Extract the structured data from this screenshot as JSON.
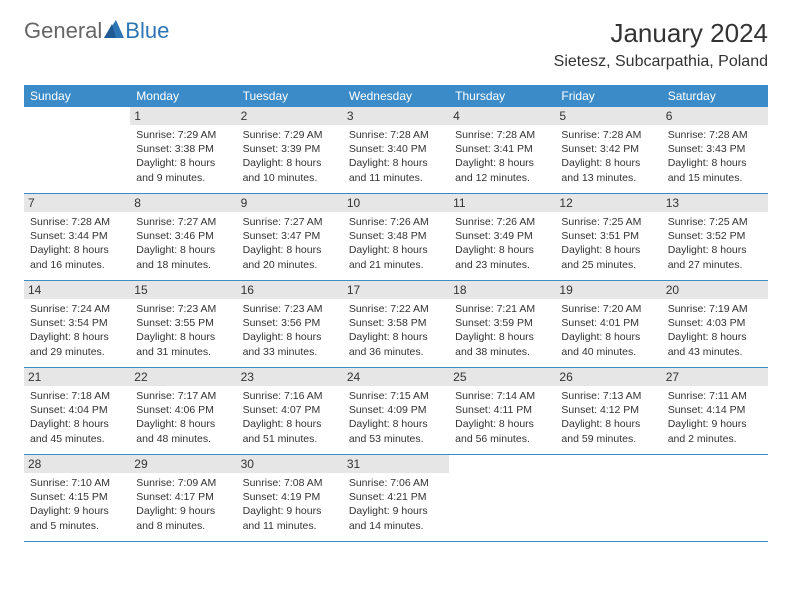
{
  "logo": {
    "text1": "General",
    "text2": "Blue"
  },
  "header": {
    "month_title": "January 2024",
    "location": "Sietesz, Subcarpathia, Poland"
  },
  "colors": {
    "header_bg": "#3b8bc9",
    "header_text": "#ffffff",
    "daynum_bg": "#e6e6e6",
    "border": "#3b8bc9",
    "logo_blue": "#2e75b6",
    "logo_gray": "#666666"
  },
  "day_names": [
    "Sunday",
    "Monday",
    "Tuesday",
    "Wednesday",
    "Thursday",
    "Friday",
    "Saturday"
  ],
  "weeks": [
    [
      {
        "day": "",
        "empty": true
      },
      {
        "day": "1",
        "sunrise": "Sunrise: 7:29 AM",
        "sunset": "Sunset: 3:38 PM",
        "daylight1": "Daylight: 8 hours",
        "daylight2": "and 9 minutes."
      },
      {
        "day": "2",
        "sunrise": "Sunrise: 7:29 AM",
        "sunset": "Sunset: 3:39 PM",
        "daylight1": "Daylight: 8 hours",
        "daylight2": "and 10 minutes."
      },
      {
        "day": "3",
        "sunrise": "Sunrise: 7:28 AM",
        "sunset": "Sunset: 3:40 PM",
        "daylight1": "Daylight: 8 hours",
        "daylight2": "and 11 minutes."
      },
      {
        "day": "4",
        "sunrise": "Sunrise: 7:28 AM",
        "sunset": "Sunset: 3:41 PM",
        "daylight1": "Daylight: 8 hours",
        "daylight2": "and 12 minutes."
      },
      {
        "day": "5",
        "sunrise": "Sunrise: 7:28 AM",
        "sunset": "Sunset: 3:42 PM",
        "daylight1": "Daylight: 8 hours",
        "daylight2": "and 13 minutes."
      },
      {
        "day": "6",
        "sunrise": "Sunrise: 7:28 AM",
        "sunset": "Sunset: 3:43 PM",
        "daylight1": "Daylight: 8 hours",
        "daylight2": "and 15 minutes."
      }
    ],
    [
      {
        "day": "7",
        "sunrise": "Sunrise: 7:28 AM",
        "sunset": "Sunset: 3:44 PM",
        "daylight1": "Daylight: 8 hours",
        "daylight2": "and 16 minutes."
      },
      {
        "day": "8",
        "sunrise": "Sunrise: 7:27 AM",
        "sunset": "Sunset: 3:46 PM",
        "daylight1": "Daylight: 8 hours",
        "daylight2": "and 18 minutes."
      },
      {
        "day": "9",
        "sunrise": "Sunrise: 7:27 AM",
        "sunset": "Sunset: 3:47 PM",
        "daylight1": "Daylight: 8 hours",
        "daylight2": "and 20 minutes."
      },
      {
        "day": "10",
        "sunrise": "Sunrise: 7:26 AM",
        "sunset": "Sunset: 3:48 PM",
        "daylight1": "Daylight: 8 hours",
        "daylight2": "and 21 minutes."
      },
      {
        "day": "11",
        "sunrise": "Sunrise: 7:26 AM",
        "sunset": "Sunset: 3:49 PM",
        "daylight1": "Daylight: 8 hours",
        "daylight2": "and 23 minutes."
      },
      {
        "day": "12",
        "sunrise": "Sunrise: 7:25 AM",
        "sunset": "Sunset: 3:51 PM",
        "daylight1": "Daylight: 8 hours",
        "daylight2": "and 25 minutes."
      },
      {
        "day": "13",
        "sunrise": "Sunrise: 7:25 AM",
        "sunset": "Sunset: 3:52 PM",
        "daylight1": "Daylight: 8 hours",
        "daylight2": "and 27 minutes."
      }
    ],
    [
      {
        "day": "14",
        "sunrise": "Sunrise: 7:24 AM",
        "sunset": "Sunset: 3:54 PM",
        "daylight1": "Daylight: 8 hours",
        "daylight2": "and 29 minutes."
      },
      {
        "day": "15",
        "sunrise": "Sunrise: 7:23 AM",
        "sunset": "Sunset: 3:55 PM",
        "daylight1": "Daylight: 8 hours",
        "daylight2": "and 31 minutes."
      },
      {
        "day": "16",
        "sunrise": "Sunrise: 7:23 AM",
        "sunset": "Sunset: 3:56 PM",
        "daylight1": "Daylight: 8 hours",
        "daylight2": "and 33 minutes."
      },
      {
        "day": "17",
        "sunrise": "Sunrise: 7:22 AM",
        "sunset": "Sunset: 3:58 PM",
        "daylight1": "Daylight: 8 hours",
        "daylight2": "and 36 minutes."
      },
      {
        "day": "18",
        "sunrise": "Sunrise: 7:21 AM",
        "sunset": "Sunset: 3:59 PM",
        "daylight1": "Daylight: 8 hours",
        "daylight2": "and 38 minutes."
      },
      {
        "day": "19",
        "sunrise": "Sunrise: 7:20 AM",
        "sunset": "Sunset: 4:01 PM",
        "daylight1": "Daylight: 8 hours",
        "daylight2": "and 40 minutes."
      },
      {
        "day": "20",
        "sunrise": "Sunrise: 7:19 AM",
        "sunset": "Sunset: 4:03 PM",
        "daylight1": "Daylight: 8 hours",
        "daylight2": "and 43 minutes."
      }
    ],
    [
      {
        "day": "21",
        "sunrise": "Sunrise: 7:18 AM",
        "sunset": "Sunset: 4:04 PM",
        "daylight1": "Daylight: 8 hours",
        "daylight2": "and 45 minutes."
      },
      {
        "day": "22",
        "sunrise": "Sunrise: 7:17 AM",
        "sunset": "Sunset: 4:06 PM",
        "daylight1": "Daylight: 8 hours",
        "daylight2": "and 48 minutes."
      },
      {
        "day": "23",
        "sunrise": "Sunrise: 7:16 AM",
        "sunset": "Sunset: 4:07 PM",
        "daylight1": "Daylight: 8 hours",
        "daylight2": "and 51 minutes."
      },
      {
        "day": "24",
        "sunrise": "Sunrise: 7:15 AM",
        "sunset": "Sunset: 4:09 PM",
        "daylight1": "Daylight: 8 hours",
        "daylight2": "and 53 minutes."
      },
      {
        "day": "25",
        "sunrise": "Sunrise: 7:14 AM",
        "sunset": "Sunset: 4:11 PM",
        "daylight1": "Daylight: 8 hours",
        "daylight2": "and 56 minutes."
      },
      {
        "day": "26",
        "sunrise": "Sunrise: 7:13 AM",
        "sunset": "Sunset: 4:12 PM",
        "daylight1": "Daylight: 8 hours",
        "daylight2": "and 59 minutes."
      },
      {
        "day": "27",
        "sunrise": "Sunrise: 7:11 AM",
        "sunset": "Sunset: 4:14 PM",
        "daylight1": "Daylight: 9 hours",
        "daylight2": "and 2 minutes."
      }
    ],
    [
      {
        "day": "28",
        "sunrise": "Sunrise: 7:10 AM",
        "sunset": "Sunset: 4:15 PM",
        "daylight1": "Daylight: 9 hours",
        "daylight2": "and 5 minutes."
      },
      {
        "day": "29",
        "sunrise": "Sunrise: 7:09 AM",
        "sunset": "Sunset: 4:17 PM",
        "daylight1": "Daylight: 9 hours",
        "daylight2": "and 8 minutes."
      },
      {
        "day": "30",
        "sunrise": "Sunrise: 7:08 AM",
        "sunset": "Sunset: 4:19 PM",
        "daylight1": "Daylight: 9 hours",
        "daylight2": "and 11 minutes."
      },
      {
        "day": "31",
        "sunrise": "Sunrise: 7:06 AM",
        "sunset": "Sunset: 4:21 PM",
        "daylight1": "Daylight: 9 hours",
        "daylight2": "and 14 minutes."
      },
      {
        "day": "",
        "empty": true
      },
      {
        "day": "",
        "empty": true
      },
      {
        "day": "",
        "empty": true
      }
    ]
  ]
}
